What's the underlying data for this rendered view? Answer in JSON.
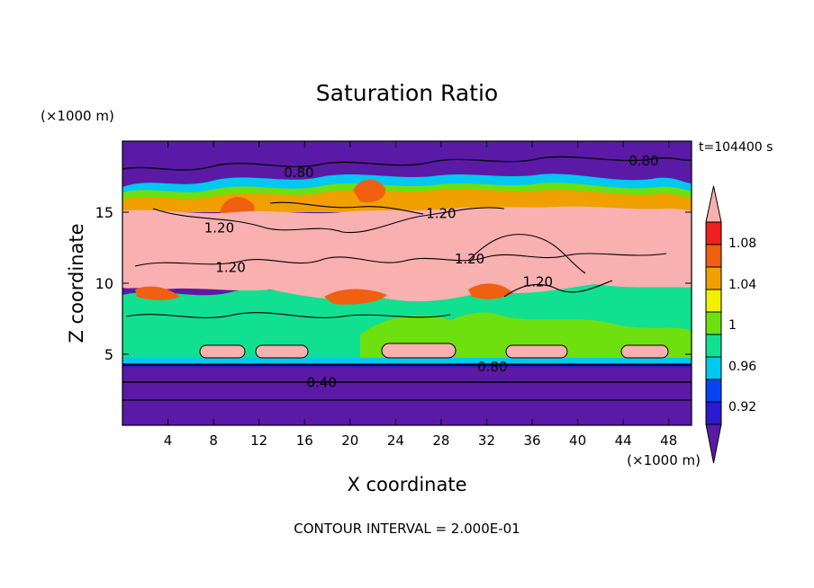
{
  "chart_data": {
    "type": "heatmap",
    "title": "Saturation Ratio",
    "xlabel": "X coordinate",
    "ylabel": "Z coordinate",
    "x_unit": "(×1000 m)",
    "y_unit": "(×1000 m)",
    "time_label": "t=104400 s",
    "footer": "CONTOUR INTERVAL = 2.000E-01",
    "xlim": [
      0,
      50
    ],
    "ylim": [
      0,
      20
    ],
    "x_ticks": [
      4,
      8,
      12,
      16,
      20,
      24,
      28,
      32,
      36,
      40,
      44,
      48
    ],
    "y_ticks": [
      5,
      10,
      15
    ],
    "contour_labels": [
      {
        "text": "0.80",
        "x": 15.5,
        "z": 17.8
      },
      {
        "text": "0.80",
        "x": 45.8,
        "z": 18.6
      },
      {
        "text": "1.20",
        "x": 28.0,
        "z": 14.9
      },
      {
        "text": "1.20",
        "x": 8.5,
        "z": 13.9
      },
      {
        "text": "1.20",
        "x": 30.5,
        "z": 11.7
      },
      {
        "text": "1.20",
        "x": 9.5,
        "z": 11.1
      },
      {
        "text": "1.20",
        "x": 36.5,
        "z": 10.1
      },
      {
        "text": "0.80",
        "x": 32.5,
        "z": 4.1
      },
      {
        "text": "0.40",
        "x": 17.5,
        "z": 3.0
      }
    ],
    "colorbar": {
      "labels": [
        "1.08",
        "1.04",
        "1",
        "0.96",
        "0.92"
      ],
      "levels": [
        0.92,
        0.94,
        0.96,
        0.98,
        1.0,
        1.02,
        1.04,
        1.06,
        1.08
      ],
      "colors": [
        "#5b1aa6",
        "#2a1ad0",
        "#0a44f0",
        "#00c8f0",
        "#10e090",
        "#6ee010",
        "#f0f000",
        "#f0a000",
        "#f06010",
        "#f02020",
        "#f8b0b0"
      ]
    }
  }
}
